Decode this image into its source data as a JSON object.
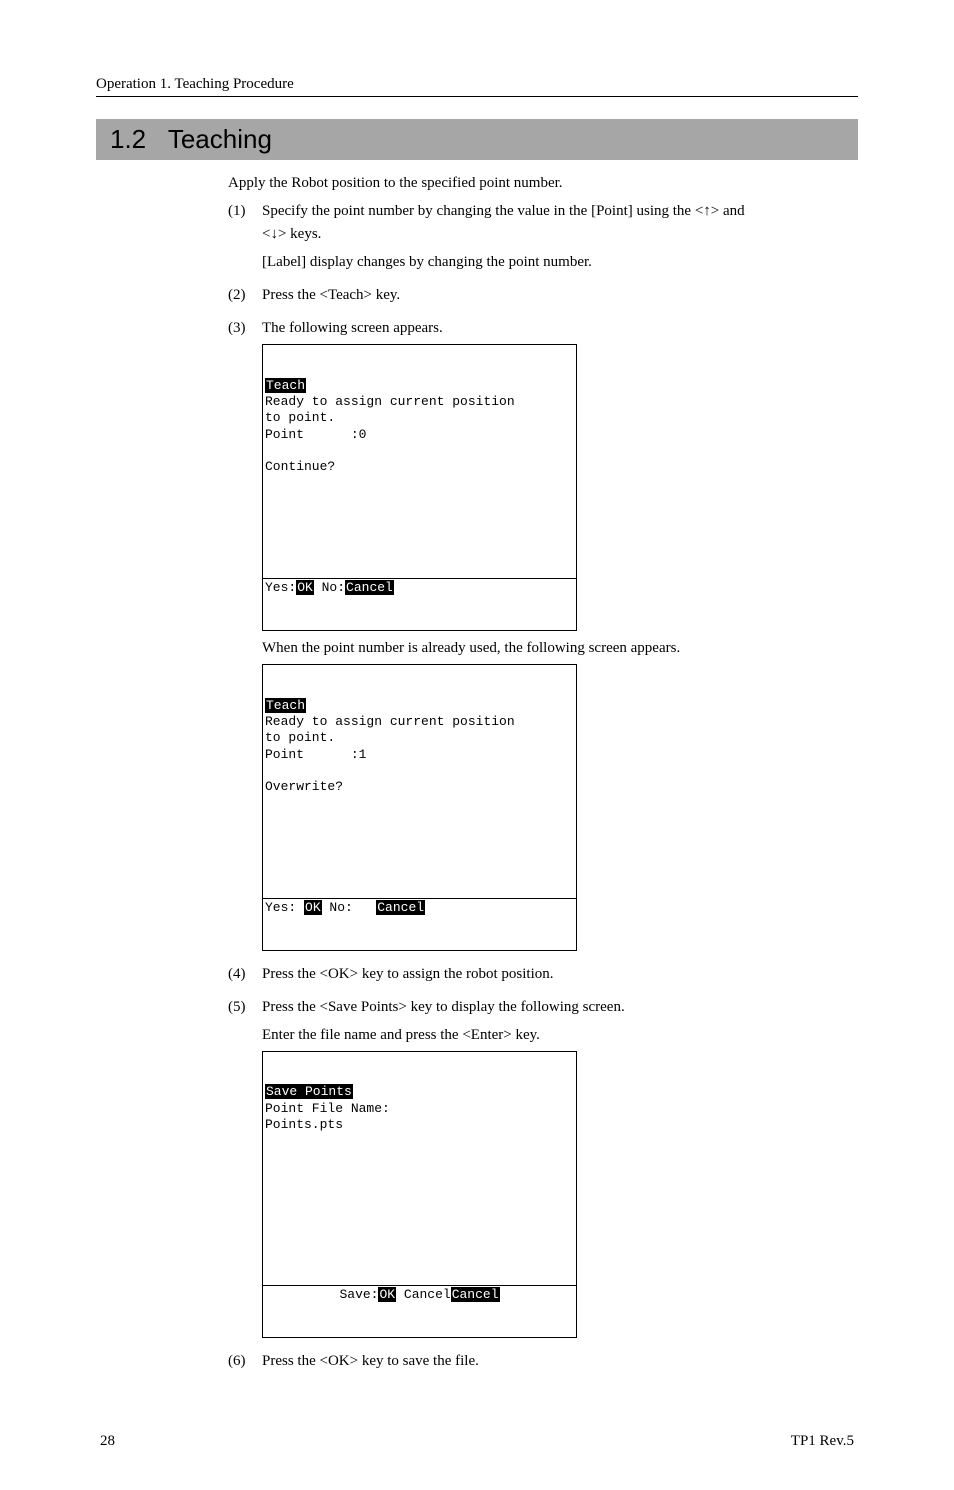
{
  "header": "Operation   1. Teaching Procedure",
  "section_number": "1.2",
  "section_title": "Teaching",
  "intro": "Apply the Robot position to the specified point number.",
  "steps": {
    "s1": {
      "num": "(1)",
      "line1a": "Specify the point number by changing the value in the [Point] using the <",
      "line1b": "> and",
      "line2a": "<",
      "line2b": "> keys.",
      "line3": "[Label] display changes by changing the point number."
    },
    "s2": {
      "num": "(2)",
      "text": "Press the <Teach> key."
    },
    "s3": {
      "num": "(3)",
      "text": "The following screen appears.",
      "mid": "When the point number is already used, the following screen appears."
    },
    "s4": {
      "num": "(4)",
      "text": "Press the <OK> key to assign the robot position."
    },
    "s5": {
      "num": "(5)",
      "line1": "Press the <Save Points> key to display the following screen.",
      "line2": "Enter the file name and press the <Enter> key."
    },
    "s6": {
      "num": "(6)",
      "text": "Press the <OK> key to save the file."
    }
  },
  "term1": {
    "title": "Teach",
    "l1": "Ready to assign current position",
    "l2": "to point.",
    "l3": "Point      :0",
    "l4": "Continue?",
    "f_yes": "Yes:",
    "f_ok": "OK",
    "f_sep": " No:",
    "f_cancel": "Cancel"
  },
  "term2": {
    "title": "Teach",
    "l1": "Ready to assign current position",
    "l2": "to point.",
    "l3": "Point      :1",
    "l4": "Overwrite?",
    "f_yes": "Yes: ",
    "f_ok": "OK",
    "f_sep": " No:   ",
    "f_cancel": "Cancel"
  },
  "term3": {
    "title": "Save Points",
    "l1": "Point File Name:",
    "l2": "Points.pts",
    "f_save": "Save:",
    "f_ok": "OK",
    "f_sep": " Cancel",
    "f_cancel": "Cancel"
  },
  "footer": {
    "page": "28",
    "rev": "TP1   Rev.5"
  },
  "arrows": {
    "up": "↑",
    "down": "↓"
  }
}
